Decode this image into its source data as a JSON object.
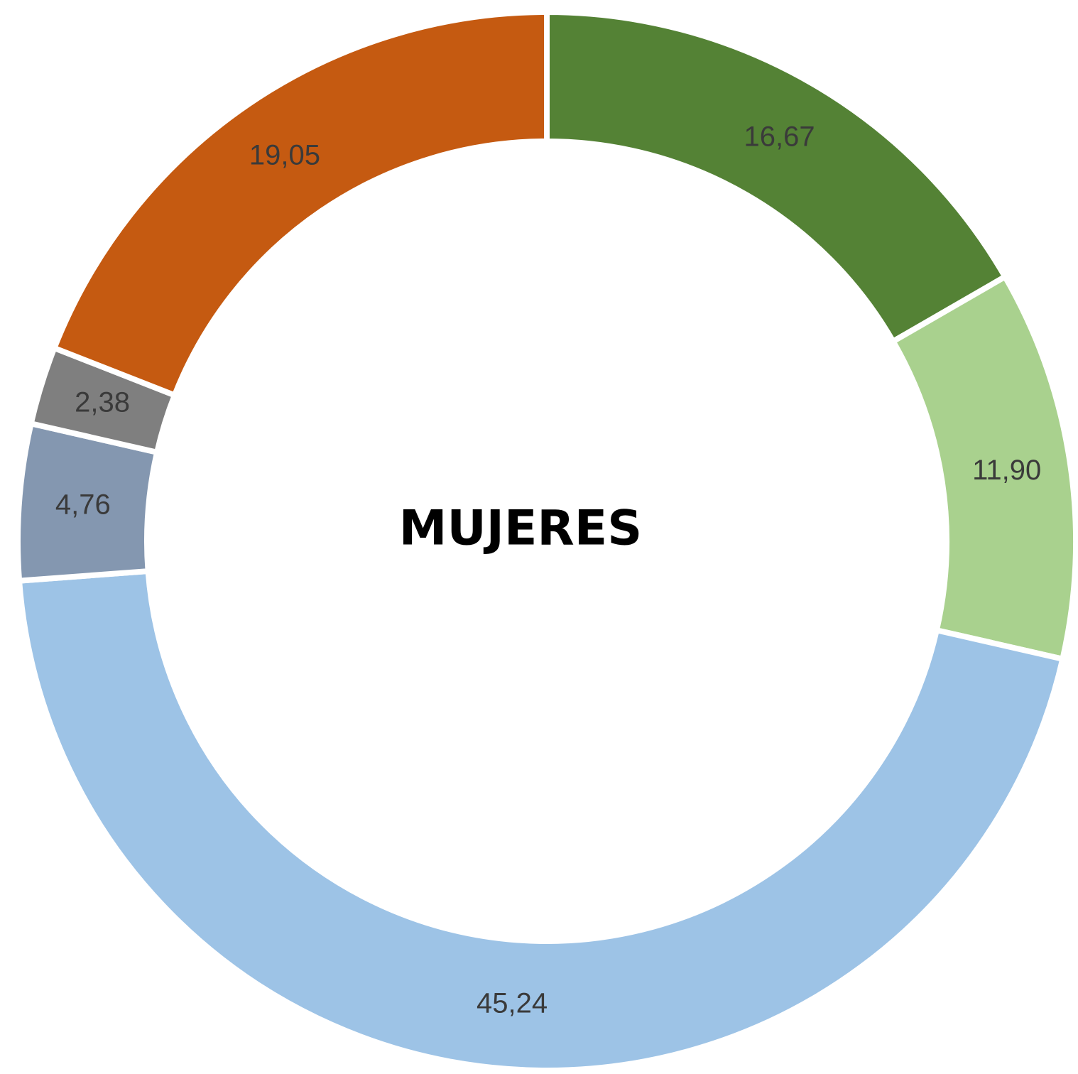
{
  "chart_data": {
    "type": "donut",
    "title": "MUJERES",
    "values": [
      16.67,
      11.9,
      45.24,
      4.76,
      2.38,
      19.05
    ],
    "value_labels": [
      "16,67",
      "11,90",
      "45,24",
      "4,76",
      "2,38",
      "19,05"
    ],
    "colors": [
      "#548235",
      "#a9d18e",
      "#9dc3e6",
      "#8497b0",
      "#7f7f7f",
      "#c55a11"
    ]
  }
}
